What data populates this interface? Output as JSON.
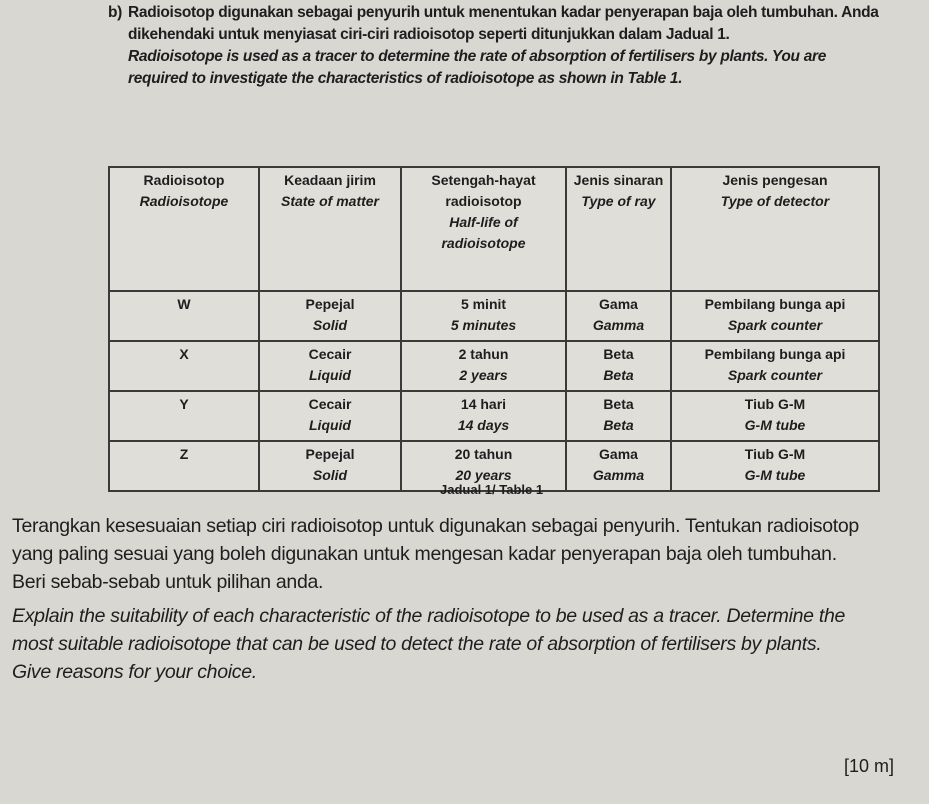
{
  "intro": {
    "label": "b)",
    "malay": "Radioisotop digunakan sebagai penyurih untuk menentukan kadar penyerapan baja oleh tumbuhan. Anda dikehendaki untuk menyiasat ciri-ciri radioisotop seperti ditunjukkan dalam Jadual 1.",
    "english": "Radioisotope is used as a tracer to determine the rate of absorption of fertilisers by plants. You are required to investigate the characteristics of radioisotope as shown in Table 1."
  },
  "table": {
    "headers": [
      {
        "ms": "Radioisotop",
        "en": "Radioisotope"
      },
      {
        "ms": "Keadaan jirim",
        "en": "State of matter"
      },
      {
        "ms": "Setengah-hayat radioisotop",
        "en": "Half-life of radioisotope"
      },
      {
        "ms": "Jenis sinaran",
        "en": "Type of ray"
      },
      {
        "ms": "Jenis pengesan",
        "en": "Type of detector"
      }
    ],
    "rows": [
      {
        "isotope": "W",
        "state_ms": "Pepejal",
        "state_en": "Solid",
        "half_ms": "5 minit",
        "half_en": "5 minutes",
        "ray_ms": "Gama",
        "ray_en": "Gamma",
        "det_ms": "Pembilang bunga api",
        "det_en": "Spark counter"
      },
      {
        "isotope": "X",
        "state_ms": "Cecair",
        "state_en": "Liquid",
        "half_ms": "2 tahun",
        "half_en": "2 years",
        "ray_ms": "Beta",
        "ray_en": "Beta",
        "det_ms": "Pembilang bunga api",
        "det_en": "Spark counter"
      },
      {
        "isotope": "Y",
        "state_ms": "Cecair",
        "state_en": "Liquid",
        "half_ms": "14 hari",
        "half_en": "14 days",
        "ray_ms": "Beta",
        "ray_en": "Beta",
        "det_ms": "Tiub G-M",
        "det_en": "G-M tube"
      },
      {
        "isotope": "Z",
        "state_ms": "Pepejal",
        "state_en": "Solid",
        "half_ms": "20 tahun",
        "half_en": "20 years",
        "ray_ms": "Gama",
        "ray_en": "Gamma",
        "det_ms": "Tiub G-M",
        "det_en": "G-M tube"
      }
    ],
    "caption": "Jadual 1/ Table 1"
  },
  "question": {
    "malay_1": "Terangkan kesesuaian setiap ciri radioisotop untuk digunakan sebagai penyurih. Tentukan radioisotop yang paling sesuai yang boleh digunakan untuk mengesan kadar penyerapan baja oleh tumbuhan.",
    "malay_2": "Beri sebab-sebab untuk pilihan anda.",
    "english_1": "Explain the suitability of each characteristic of the radioisotope to be used as a tracer. Determine the most suitable radioisotope that can be used to detect the rate of absorption of fertilisers by plants.",
    "english_2": "Give reasons for your choice.",
    "marks": "[10 m]"
  }
}
